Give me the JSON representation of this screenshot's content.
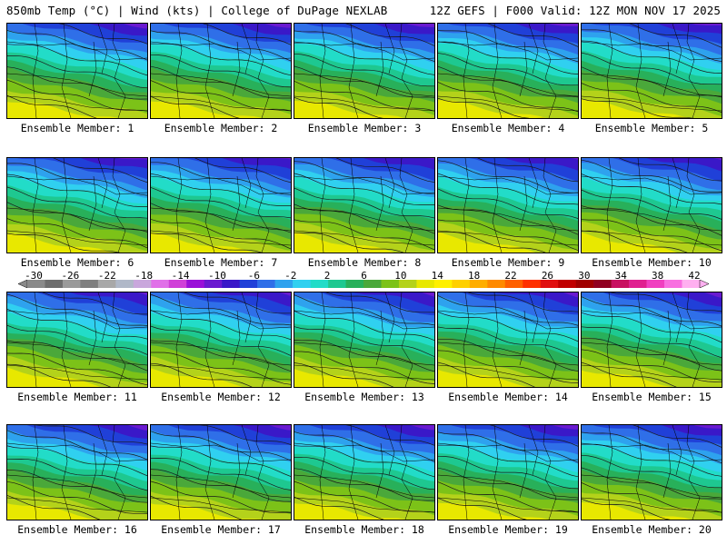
{
  "header": {
    "left": "850mb Temp (°C) | Wind (kts) | College of DuPage NEXLAB",
    "right": "12Z GEFS | F000 Valid: 12Z MON NOV 17 2025"
  },
  "members": [
    "Ensemble Member: 1",
    "Ensemble Member: 2",
    "Ensemble Member: 3",
    "Ensemble Member: 4",
    "Ensemble Member: 5",
    "Ensemble Member: 6",
    "Ensemble Member: 7",
    "Ensemble Member: 8",
    "Ensemble Member: 9",
    "Ensemble Member: 10",
    "Ensemble Member: 11",
    "Ensemble Member: 12",
    "Ensemble Member: 13",
    "Ensemble Member: 14",
    "Ensemble Member: 15",
    "Ensemble Member: 16",
    "Ensemble Member: 17",
    "Ensemble Member: 18",
    "Ensemble Member: 19",
    "Ensemble Member: 20"
  ],
  "colorbar": {
    "labels": [
      "-30",
      "-26",
      "-22",
      "-18",
      "-14",
      "-10",
      "-6",
      "-2",
      "2",
      "6",
      "10",
      "14",
      "18",
      "22",
      "26",
      "30",
      "34",
      "38",
      "42"
    ],
    "colors": [
      "#8a8a8a",
      "#6e6e6e",
      "#9a9a9a",
      "#7f7f7f",
      "#a8a8a8",
      "#b0b8c8",
      "#c9a7dc",
      "#e070e8",
      "#d040d8",
      "#9a10d8",
      "#6a1ad0",
      "#3a18c8",
      "#2040d8",
      "#2f6fe8",
      "#2ea2ee",
      "#30d0f0",
      "#22dcc8",
      "#1ec890",
      "#28b05a",
      "#4aa83a",
      "#7cc218",
      "#b4d21a",
      "#e8e800",
      "#fff000",
      "#ffd000",
      "#ffae00",
      "#ff8a00",
      "#ff6000",
      "#ff3000",
      "#e01010",
      "#c00000",
      "#a00000",
      "#900020",
      "#c81060",
      "#e02090",
      "#f040c0",
      "#f870e0",
      "#ffb0f0"
    ]
  },
  "map_colors": [
    "#9a10e8",
    "#6a1ad0",
    "#3a18c8",
    "#2040d8",
    "#2f6fe8",
    "#2ea2ee",
    "#30d0f0",
    "#22dcc8",
    "#1ec890",
    "#28b05a",
    "#4aa83a",
    "#7cc218",
    "#b4d21a",
    "#e8e800"
  ]
}
